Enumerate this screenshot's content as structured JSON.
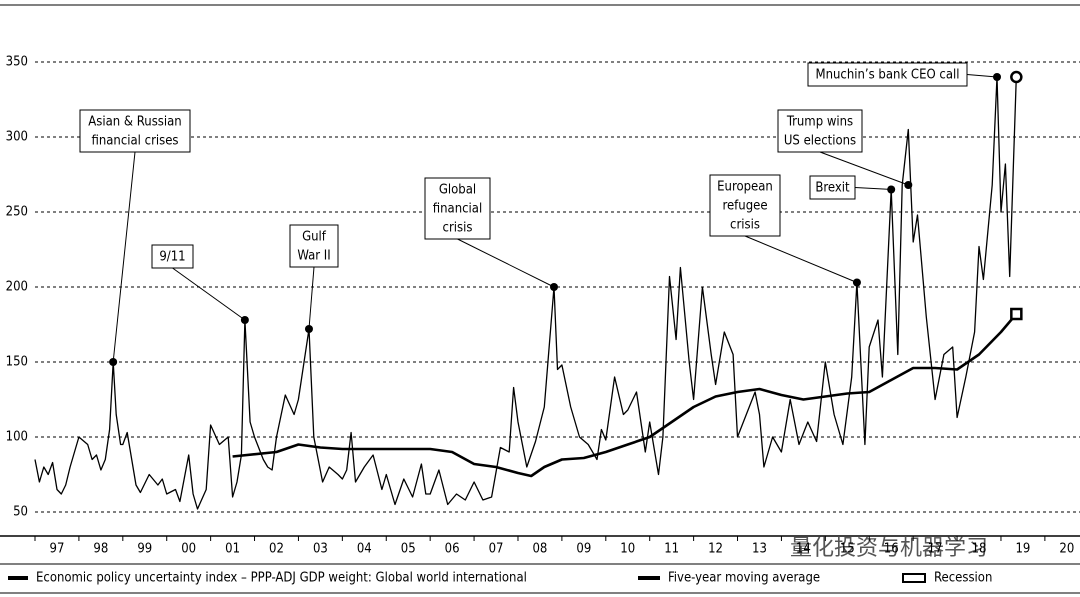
{
  "chart_data": {
    "type": "line",
    "series": [
      {
        "name": "Economic policy uncertainty index – PPP-ADJ GDP weight: Global world international",
        "color": "#000000",
        "x": [
          1997.0,
          1997.1,
          1997.2,
          1997.3,
          1997.4,
          1997.5,
          1997.6,
          1997.7,
          1997.8,
          1997.9,
          1998.0,
          1998.2,
          1998.3,
          1998.4,
          1998.5,
          1998.6,
          1998.7,
          1998.78,
          1998.85,
          1998.95,
          1999.0,
          1999.1,
          1999.3,
          1999.4,
          1999.6,
          1999.8,
          1999.9,
          2000.0,
          2000.2,
          2000.3,
          2000.5,
          2000.6,
          2000.7,
          2000.9,
          2001.0,
          2001.2,
          2001.4,
          2001.5,
          2001.6,
          2001.7,
          2001.78,
          2001.9,
          2002.0,
          2002.2,
          2002.3,
          2002.4,
          2002.5,
          2002.7,
          2002.9,
          2003.0,
          2003.24,
          2003.35,
          2003.45,
          2003.55,
          2003.7,
          2003.9,
          2004.0,
          2004.1,
          2004.2,
          2004.3,
          2004.5,
          2004.7,
          2004.9,
          2005.0,
          2005.2,
          2005.4,
          2005.6,
          2005.8,
          2005.9,
          2006.0,
          2006.2,
          2006.4,
          2006.6,
          2006.8,
          2007.0,
          2007.2,
          2007.4,
          2007.6,
          2007.8,
          2007.9,
          2008.0,
          2008.2,
          2008.4,
          2008.6,
          2008.82,
          2008.9,
          2009.0,
          2009.2,
          2009.4,
          2009.6,
          2009.8,
          2009.9,
          2010.0,
          2010.2,
          2010.4,
          2010.5,
          2010.7,
          2010.9,
          2011.0,
          2011.2,
          2011.3,
          2011.45,
          2011.6,
          2011.7,
          2011.9,
          2012.0,
          2012.2,
          2012.4,
          2012.5,
          2012.7,
          2012.9,
          2013.0,
          2013.2,
          2013.4,
          2013.5,
          2013.6,
          2013.8,
          2014.0,
          2014.2,
          2014.4,
          2014.6,
          2014.8,
          2015.0,
          2015.2,
          2015.4,
          2015.6,
          2015.72,
          2015.9,
          2016.0,
          2016.2,
          2016.3,
          2016.5,
          2016.65,
          2016.75,
          2016.89,
          2017.0,
          2017.1,
          2017.3,
          2017.5,
          2017.7,
          2017.9,
          2018.0,
          2018.2,
          2018.4,
          2018.5,
          2018.6,
          2018.8,
          2018.91,
          2019.0,
          2019.1,
          2019.2,
          2019.35
        ],
        "values": [
          85,
          70,
          80,
          75,
          83,
          65,
          62,
          68,
          80,
          90,
          100,
          95,
          85,
          88,
          78,
          85,
          105,
          150,
          115,
          95,
          95,
          103,
          68,
          63,
          75,
          68,
          72,
          62,
          65,
          57,
          88,
          62,
          52,
          65,
          108,
          95,
          100,
          60,
          70,
          88,
          178,
          110,
          100,
          85,
          80,
          78,
          100,
          128,
          115,
          125,
          172,
          100,
          85,
          70,
          80,
          75,
          72,
          78,
          103,
          70,
          80,
          88,
          65,
          75,
          55,
          72,
          60,
          82,
          62,
          62,
          78,
          55,
          62,
          58,
          70,
          58,
          60,
          93,
          90,
          133,
          110,
          80,
          97,
          120,
          200,
          145,
          148,
          120,
          100,
          95,
          85,
          105,
          98,
          140,
          115,
          118,
          130,
          90,
          110,
          75,
          100,
          207,
          165,
          213,
          150,
          125,
          200,
          155,
          135,
          170,
          155,
          100,
          115,
          130,
          115,
          80,
          100,
          90,
          125,
          95,
          110,
          97,
          150,
          115,
          95,
          140,
          203,
          95,
          160,
          178,
          140,
          265,
          155,
          268,
          305,
          230,
          248,
          180,
          125,
          155,
          160,
          113,
          140,
          170,
          227,
          205,
          268,
          340,
          250,
          282,
          207,
          340
        ]
      },
      {
        "name": "Five-year moving average",
        "color": "#000000",
        "x": [
          2001.5,
          2002.5,
          2003.0,
          2003.5,
          2004.0,
          2005.0,
          2006.0,
          2006.5,
          2007.0,
          2007.5,
          2008.0,
          2008.3,
          2008.6,
          2009.0,
          2009.5,
          2010.0,
          2010.5,
          2011.0,
          2011.5,
          2012.0,
          2012.5,
          2013.0,
          2013.5,
          2014.0,
          2014.5,
          2015.0,
          2015.5,
          2016.0,
          2016.5,
          2017.0,
          2017.5,
          2018.0,
          2018.5,
          2019.0,
          2019.35
        ],
        "values": [
          87,
          90,
          95,
          93,
          92,
          92,
          92,
          90,
          82,
          80,
          76,
          74,
          80,
          85,
          86,
          90,
          95,
          100,
          110,
          120,
          127,
          130,
          132,
          128,
          125,
          127,
          129,
          130,
          138,
          146,
          146,
          145,
          155,
          170,
          182
        ]
      }
    ],
    "recession_legend": "Recession",
    "annotations": [
      {
        "lines": [
          "Asian & Russian",
          "financial crises"
        ],
        "x": 1998.78,
        "y": 150
      },
      {
        "lines": [
          "9/11"
        ],
        "x": 2001.78,
        "y": 178
      },
      {
        "lines": [
          "Gulf",
          "War II"
        ],
        "x": 2003.24,
        "y": 172
      },
      {
        "lines": [
          "Global",
          "financial",
          "crisis"
        ],
        "x": 2008.82,
        "y": 200
      },
      {
        "lines": [
          "European",
          "refugee",
          "crisis"
        ],
        "x": 2015.72,
        "y": 203
      },
      {
        "lines": [
          "Brexit"
        ],
        "x": 2016.5,
        "y": 265
      },
      {
        "lines": [
          "Trump wins",
          "US elections"
        ],
        "x": 2016.89,
        "y": 268
      },
      {
        "lines": [
          "Mnuchin’s bank CEO call"
        ],
        "x": 2018.91,
        "y": 340
      }
    ],
    "watermark": "量化投资与机器学习",
    "xlim": [
      1997,
      2020.8
    ],
    "xticks": [
      {
        "value": 1997,
        "label": "97"
      },
      {
        "value": 1998,
        "label": "98"
      },
      {
        "value": 1999,
        "label": "99"
      },
      {
        "value": 2000,
        "label": "00"
      },
      {
        "value": 2001,
        "label": "01"
      },
      {
        "value": 2002,
        "label": "02"
      },
      {
        "value": 2003,
        "label": "03"
      },
      {
        "value": 2004,
        "label": "04"
      },
      {
        "value": 2005,
        "label": "05"
      },
      {
        "value": 2006,
        "label": "06"
      },
      {
        "value": 2007,
        "label": "07"
      },
      {
        "value": 2008,
        "label": "08"
      },
      {
        "value": 2009,
        "label": "09"
      },
      {
        "value": 2010,
        "label": "10"
      },
      {
        "value": 2011,
        "label": "11"
      },
      {
        "value": 2012,
        "label": "12"
      },
      {
        "value": 2013,
        "label": "13"
      },
      {
        "value": 2014,
        "label": "14"
      },
      {
        "value": 2015,
        "label": "15"
      },
      {
        "value": 2016,
        "label": "16"
      },
      {
        "value": 2017,
        "label": "17"
      },
      {
        "value": 2018,
        "label": "18"
      },
      {
        "value": 2019,
        "label": "19"
      },
      {
        "value": 2020,
        "label": "20"
      }
    ],
    "ylim": [
      38,
      388
    ],
    "yticks": [
      50,
      100,
      150,
      200,
      250,
      300,
      350
    ],
    "grid": true
  }
}
